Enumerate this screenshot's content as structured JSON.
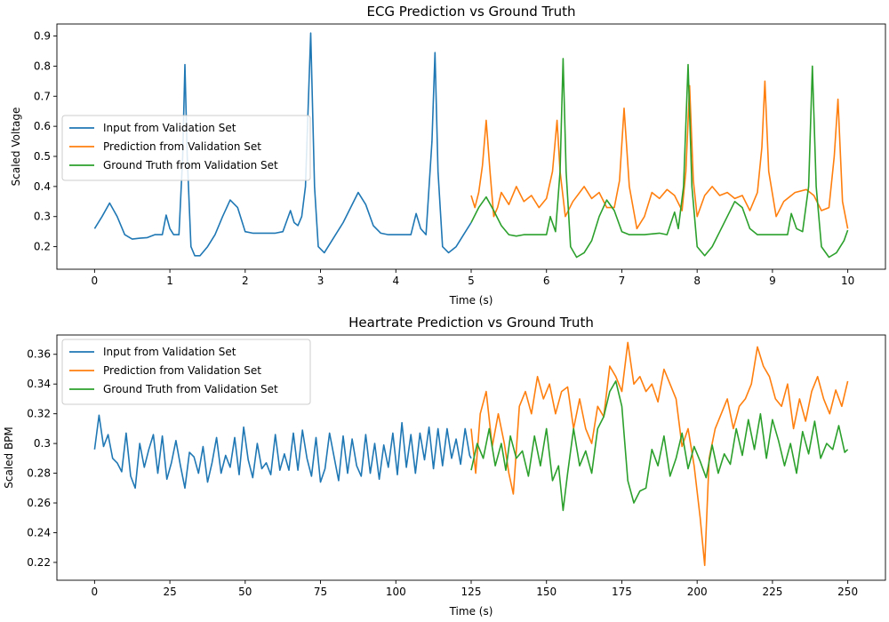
{
  "chart_data": [
    {
      "type": "line",
      "title": "ECG Prediction vs Ground Truth",
      "xlabel": "Time (s)",
      "ylabel": "Scaled Voltage",
      "xlim": [
        -0.5,
        10.5
      ],
      "ylim": [
        0.125,
        0.94
      ],
      "xticks": [
        0,
        1,
        2,
        3,
        4,
        5,
        6,
        7,
        8,
        9,
        10
      ],
      "yticks": [
        0.2,
        0.3,
        0.4,
        0.5,
        0.6,
        0.7,
        0.8,
        0.9
      ],
      "grid": false,
      "legend_position": "center-left",
      "series": [
        {
          "name": "Input from Validation Set",
          "color": "#1f77b4",
          "x": [
            0,
            0.1,
            0.2,
            0.3,
            0.4,
            0.5,
            0.6,
            0.7,
            0.8,
            0.9,
            0.95,
            1.0,
            1.05,
            1.12,
            1.17,
            1.2,
            1.23,
            1.28,
            1.33,
            1.4,
            1.5,
            1.6,
            1.7,
            1.8,
            1.9,
            2.0,
            2.1,
            2.2,
            2.3,
            2.4,
            2.5,
            2.6,
            2.65,
            2.7,
            2.75,
            2.8,
            2.87,
            2.92,
            2.97,
            3.05,
            3.15,
            3.3,
            3.5,
            3.6,
            3.7,
            3.8,
            3.9,
            4.0,
            4.1,
            4.2,
            4.27,
            4.33,
            4.4,
            4.48,
            4.52,
            4.56,
            4.62,
            4.7,
            4.8,
            4.9,
            5.0
          ],
          "y": [
            0.26,
            0.3,
            0.345,
            0.3,
            0.24,
            0.225,
            0.228,
            0.23,
            0.24,
            0.24,
            0.305,
            0.26,
            0.24,
            0.24,
            0.5,
            0.805,
            0.5,
            0.2,
            0.17,
            0.17,
            0.2,
            0.24,
            0.3,
            0.355,
            0.33,
            0.25,
            0.245,
            0.245,
            0.245,
            0.245,
            0.25,
            0.32,
            0.28,
            0.27,
            0.3,
            0.4,
            0.91,
            0.4,
            0.2,
            0.18,
            0.22,
            0.28,
            0.38,
            0.34,
            0.27,
            0.245,
            0.24,
            0.24,
            0.24,
            0.24,
            0.31,
            0.26,
            0.24,
            0.55,
            0.845,
            0.45,
            0.2,
            0.18,
            0.2,
            0.24,
            0.28
          ]
        },
        {
          "name": "Prediction from Validation Set",
          "color": "#ff7f0e",
          "x": [
            5.0,
            5.05,
            5.1,
            5.15,
            5.2,
            5.25,
            5.3,
            5.35,
            5.4,
            5.5,
            5.6,
            5.7,
            5.8,
            5.9,
            6.0,
            6.08,
            6.14,
            6.18,
            6.25,
            6.35,
            6.5,
            6.6,
            6.7,
            6.8,
            6.9,
            6.97,
            7.03,
            7.1,
            7.2,
            7.3,
            7.4,
            7.5,
            7.6,
            7.7,
            7.8,
            7.85,
            7.9,
            7.95,
            8.0,
            8.1,
            8.2,
            8.3,
            8.4,
            8.5,
            8.6,
            8.7,
            8.8,
            8.86,
            8.9,
            8.95,
            9.05,
            9.15,
            9.3,
            9.45,
            9.55,
            9.65,
            9.75,
            9.82,
            9.87,
            9.93,
            10.0
          ],
          "y": [
            0.37,
            0.33,
            0.38,
            0.47,
            0.62,
            0.45,
            0.3,
            0.33,
            0.38,
            0.34,
            0.4,
            0.35,
            0.37,
            0.33,
            0.36,
            0.45,
            0.62,
            0.45,
            0.3,
            0.35,
            0.4,
            0.36,
            0.38,
            0.33,
            0.33,
            0.42,
            0.66,
            0.4,
            0.26,
            0.3,
            0.38,
            0.36,
            0.39,
            0.37,
            0.32,
            0.45,
            0.735,
            0.42,
            0.3,
            0.37,
            0.4,
            0.37,
            0.38,
            0.36,
            0.37,
            0.32,
            0.38,
            0.53,
            0.75,
            0.45,
            0.3,
            0.35,
            0.38,
            0.39,
            0.37,
            0.32,
            0.33,
            0.5,
            0.69,
            0.35,
            0.26
          ]
        },
        {
          "name": "Ground Truth from Validation Set",
          "color": "#2ca02c",
          "x": [
            5.0,
            5.1,
            5.2,
            5.3,
            5.4,
            5.5,
            5.6,
            5.7,
            5.8,
            5.9,
            6.0,
            6.05,
            6.12,
            6.18,
            6.22,
            6.26,
            6.32,
            6.4,
            6.5,
            6.6,
            6.7,
            6.8,
            6.9,
            7.0,
            7.1,
            7.2,
            7.3,
            7.5,
            7.6,
            7.7,
            7.75,
            7.82,
            7.88,
            7.93,
            8.0,
            8.1,
            8.2,
            8.3,
            8.4,
            8.5,
            8.6,
            8.7,
            8.8,
            8.9,
            9.0,
            9.1,
            9.2,
            9.25,
            9.32,
            9.4,
            9.48,
            9.53,
            9.58,
            9.65,
            9.75,
            9.85,
            9.95,
            10.0
          ],
          "y": [
            0.28,
            0.33,
            0.365,
            0.32,
            0.27,
            0.24,
            0.235,
            0.24,
            0.24,
            0.24,
            0.24,
            0.3,
            0.25,
            0.45,
            0.825,
            0.45,
            0.2,
            0.165,
            0.18,
            0.22,
            0.3,
            0.355,
            0.32,
            0.25,
            0.24,
            0.24,
            0.24,
            0.245,
            0.24,
            0.315,
            0.26,
            0.4,
            0.805,
            0.4,
            0.2,
            0.17,
            0.2,
            0.25,
            0.3,
            0.35,
            0.33,
            0.26,
            0.24,
            0.24,
            0.24,
            0.24,
            0.24,
            0.31,
            0.26,
            0.25,
            0.4,
            0.8,
            0.4,
            0.2,
            0.165,
            0.18,
            0.22,
            0.255
          ]
        }
      ]
    },
    {
      "type": "line",
      "title": "Heartrate Prediction vs Ground Truth",
      "xlabel": "Time (s)",
      "ylabel": "Scaled BPM",
      "xlim": [
        -12.5,
        262.5
      ],
      "ylim": [
        0.208,
        0.373
      ],
      "xticks": [
        0,
        25,
        50,
        75,
        100,
        125,
        150,
        175,
        200,
        225,
        250
      ],
      "yticks": [
        0.22,
        0.24,
        0.26,
        0.28,
        0.3,
        0.32,
        0.34,
        0.36
      ],
      "grid": false,
      "legend_position": "top-left",
      "series": [
        {
          "name": "Input from Validation Set",
          "color": "#1f77b4",
          "x": [
            0,
            1.5,
            3,
            4.5,
            6,
            7.5,
            9,
            10.5,
            12,
            13.5,
            15,
            16.5,
            18,
            19.5,
            21,
            22.5,
            24,
            25.5,
            27,
            28.5,
            30,
            31.5,
            33,
            34.5,
            36,
            37.5,
            39,
            40.5,
            42,
            43.5,
            45,
            46.5,
            48,
            49.5,
            51,
            52.5,
            54,
            55.5,
            57,
            58.5,
            60,
            61.5,
            63,
            64.5,
            66,
            67.5,
            69,
            70.5,
            72,
            73.5,
            75,
            76.5,
            78,
            79.5,
            81,
            82.5,
            84,
            85.5,
            87,
            88.5,
            90,
            91.5,
            93,
            94.5,
            96,
            97.5,
            99,
            100.5,
            102,
            103.5,
            105,
            106.5,
            108,
            109.5,
            111,
            112.5,
            114,
            115.5,
            117,
            118.5,
            120,
            121.5,
            123,
            124.5,
            125
          ],
          "y": [
            0.296,
            0.319,
            0.298,
            0.306,
            0.29,
            0.287,
            0.281,
            0.307,
            0.278,
            0.27,
            0.3,
            0.284,
            0.296,
            0.306,
            0.28,
            0.305,
            0.276,
            0.287,
            0.302,
            0.285,
            0.27,
            0.294,
            0.291,
            0.28,
            0.298,
            0.274,
            0.287,
            0.304,
            0.28,
            0.292,
            0.284,
            0.304,
            0.279,
            0.311,
            0.289,
            0.277,
            0.3,
            0.283,
            0.287,
            0.279,
            0.306,
            0.282,
            0.293,
            0.282,
            0.307,
            0.282,
            0.309,
            0.29,
            0.278,
            0.304,
            0.274,
            0.283,
            0.307,
            0.291,
            0.275,
            0.305,
            0.28,
            0.303,
            0.285,
            0.278,
            0.306,
            0.28,
            0.3,
            0.276,
            0.299,
            0.284,
            0.307,
            0.279,
            0.314,
            0.284,
            0.306,
            0.28,
            0.307,
            0.289,
            0.311,
            0.283,
            0.31,
            0.285,
            0.31,
            0.29,
            0.303,
            0.286,
            0.31,
            0.292,
            0.29
          ]
        },
        {
          "name": "Prediction from Validation Set",
          "color": "#ff7f0e",
          "x": [
            125,
            126.5,
            128,
            130,
            132,
            134,
            136,
            137.5,
            139,
            141,
            143,
            145,
            147,
            149,
            151,
            153,
            155,
            157,
            159,
            161,
            163,
            165,
            167,
            169,
            171,
            173,
            175,
            177,
            179,
            181,
            183,
            185,
            187,
            189,
            191,
            193,
            195,
            197,
            199,
            201,
            202.5,
            204,
            206,
            208,
            210,
            212,
            214,
            216,
            218,
            220,
            222,
            224,
            226,
            228,
            230,
            232,
            234,
            236,
            238,
            240,
            242,
            244,
            246,
            248,
            250
          ],
          "y": [
            0.31,
            0.28,
            0.32,
            0.335,
            0.298,
            0.32,
            0.3,
            0.28,
            0.266,
            0.325,
            0.335,
            0.32,
            0.345,
            0.33,
            0.34,
            0.32,
            0.335,
            0.338,
            0.31,
            0.33,
            0.31,
            0.3,
            0.325,
            0.318,
            0.352,
            0.345,
            0.335,
            0.368,
            0.34,
            0.345,
            0.335,
            0.34,
            0.328,
            0.35,
            0.34,
            0.33,
            0.298,
            0.31,
            0.285,
            0.25,
            0.218,
            0.29,
            0.31,
            0.32,
            0.33,
            0.31,
            0.325,
            0.33,
            0.34,
            0.365,
            0.352,
            0.345,
            0.33,
            0.325,
            0.34,
            0.31,
            0.33,
            0.315,
            0.335,
            0.345,
            0.33,
            0.32,
            0.336,
            0.325,
            0.342
          ]
        },
        {
          "name": "Ground Truth from Validation Set",
          "color": "#2ca02c",
          "x": [
            125,
            127,
            129,
            131,
            133,
            135,
            136.5,
            138,
            140,
            142,
            144,
            146,
            148,
            150,
            152,
            154,
            155.5,
            157,
            159,
            161,
            163,
            165,
            167,
            169,
            171,
            173,
            175,
            177,
            179,
            181,
            183,
            185,
            187,
            189,
            191,
            193,
            195,
            197,
            199,
            201,
            203,
            205,
            207,
            209,
            211,
            213,
            215,
            217,
            219,
            221,
            223,
            225,
            227,
            229,
            231,
            233,
            235,
            237,
            239,
            241,
            243,
            245,
            247,
            249,
            250
          ],
          "y": [
            0.282,
            0.3,
            0.29,
            0.31,
            0.285,
            0.3,
            0.282,
            0.305,
            0.29,
            0.295,
            0.278,
            0.305,
            0.285,
            0.31,
            0.275,
            0.285,
            0.255,
            0.28,
            0.31,
            0.285,
            0.295,
            0.28,
            0.31,
            0.318,
            0.335,
            0.342,
            0.325,
            0.275,
            0.26,
            0.268,
            0.27,
            0.296,
            0.285,
            0.305,
            0.278,
            0.29,
            0.307,
            0.283,
            0.298,
            0.288,
            0.277,
            0.299,
            0.28,
            0.293,
            0.286,
            0.31,
            0.292,
            0.316,
            0.296,
            0.32,
            0.29,
            0.316,
            0.302,
            0.285,
            0.3,
            0.28,
            0.308,
            0.293,
            0.315,
            0.29,
            0.3,
            0.296,
            0.312,
            0.294,
            0.296
          ]
        }
      ]
    }
  ]
}
